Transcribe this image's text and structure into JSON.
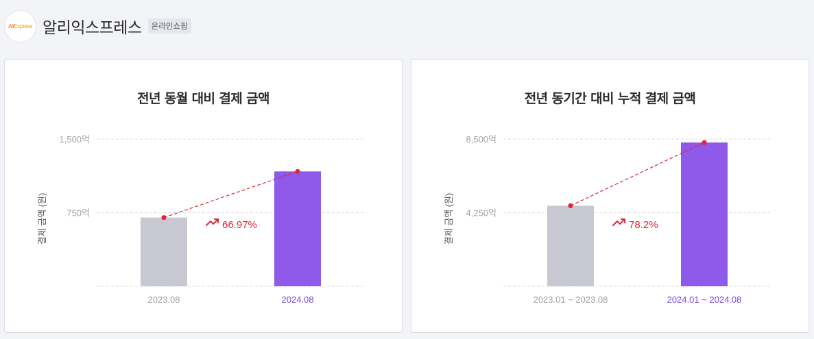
{
  "header": {
    "logo_text_a": "Ali",
    "logo_text_b": "Express",
    "brand_name": "알리익스프레스",
    "category_tag": "온라인쇼핑"
  },
  "colors": {
    "bar_prev": "#c8c8d2",
    "bar_curr": "#8f59e9",
    "trend": "#e0243a",
    "grid": "#dddddd",
    "axis_text": "#a0a0a8"
  },
  "chart_data": [
    {
      "type": "bar",
      "title": "전년 동월 대비 결제 금액",
      "ylabel": "결제 금액 (원)",
      "ylim": [
        0,
        1500
      ],
      "yticks": [
        0,
        750,
        1500
      ],
      "ytick_labels": [
        "",
        "750억",
        "1,500억"
      ],
      "categories": [
        "2023.08",
        "2024.08"
      ],
      "values": [
        700,
        1170
      ],
      "growth_label": "66.97%",
      "icon": "trend-up-icon",
      "grid": true
    },
    {
      "type": "bar",
      "title": "전년 동기간 대비 누적 결제 금액",
      "ylabel": "결제 금액 (원)",
      "ylim": [
        0,
        8500
      ],
      "yticks": [
        0,
        4250,
        8500
      ],
      "ytick_labels": [
        "",
        "4,250억",
        "8,500억"
      ],
      "categories": [
        "2023.01 ~ 2023.08",
        "2024.01 ~ 2024.08"
      ],
      "values": [
        4650,
        8300
      ],
      "growth_label": "78.2%",
      "icon": "trend-up-icon",
      "grid": true
    }
  ]
}
